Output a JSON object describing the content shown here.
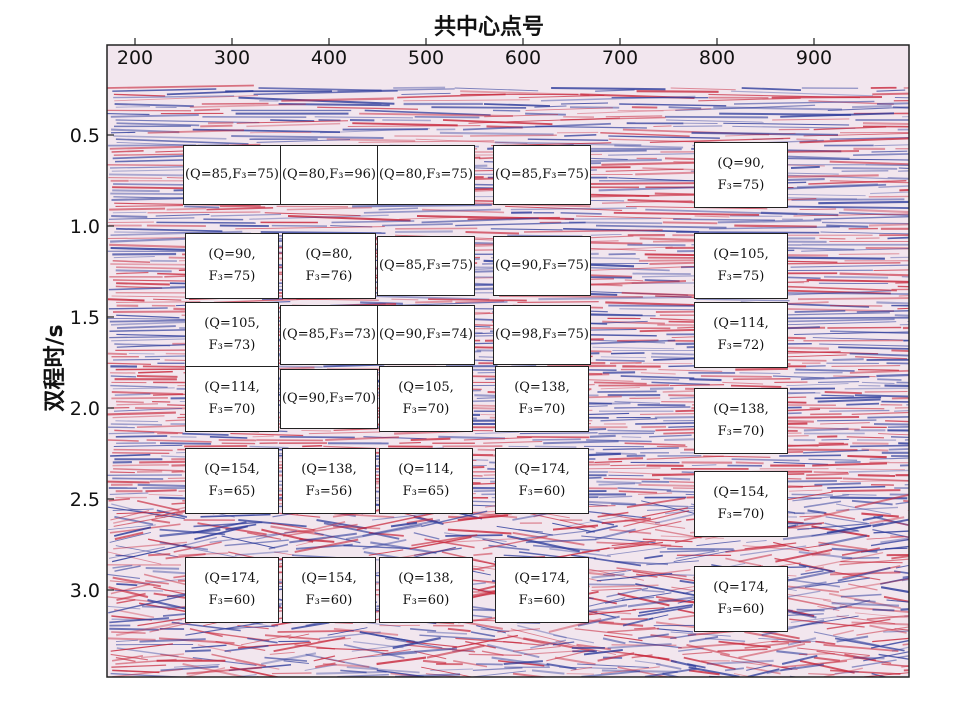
{
  "x_axis": {
    "title": "共中心点号",
    "ticks": [
      "200",
      "300",
      "400",
      "500",
      "600",
      "700",
      "800",
      "900"
    ]
  },
  "y_axis": {
    "title": "双程时/s",
    "ticks": [
      "0.5",
      "1.0",
      "1.5",
      "2.0",
      "2.5",
      "3.0"
    ]
  },
  "colors": {
    "positive": "#c8283c",
    "negative": "#2d3c9b",
    "background": "#f2e6ee"
  },
  "annotations": [
    {
      "lines": [
        "(Q=85,F₃=75)"
      ],
      "cmp": 300,
      "t": 0.72
    },
    {
      "lines": [
        "(Q=80,F₃=96)"
      ],
      "cmp": 400,
      "t": 0.72
    },
    {
      "lines": [
        "(Q=80,F₃=75)"
      ],
      "cmp": 500,
      "t": 0.72
    },
    {
      "lines": [
        "(Q=85,F₃=75)"
      ],
      "cmp": 620,
      "t": 0.72
    },
    {
      "lines": [
        "(Q=90,",
        "F₃=75)"
      ],
      "cmp": 825,
      "t": 0.72
    },
    {
      "lines": [
        "(Q=90,",
        "F₃=75)"
      ],
      "cmp": 300,
      "t": 1.22
    },
    {
      "lines": [
        "(Q=80,",
        "F₃=76)"
      ],
      "cmp": 400,
      "t": 1.22
    },
    {
      "lines": [
        "(Q=85,F₃=75)"
      ],
      "cmp": 500,
      "t": 1.22
    },
    {
      "lines": [
        "(Q=90,F₃=75)"
      ],
      "cmp": 620,
      "t": 1.22
    },
    {
      "lines": [
        "(Q=105,",
        "F₃=75)"
      ],
      "cmp": 825,
      "t": 1.22
    },
    {
      "lines": [
        "(Q=105,",
        "F₃=73)"
      ],
      "cmp": 300,
      "t": 1.6
    },
    {
      "lines": [
        "(Q=85,F₃=73)"
      ],
      "cmp": 400,
      "t": 1.6
    },
    {
      "lines": [
        "(Q=90,F₃=74)"
      ],
      "cmp": 500,
      "t": 1.6
    },
    {
      "lines": [
        "(Q=98,F₃=75)"
      ],
      "cmp": 620,
      "t": 1.6
    },
    {
      "lines": [
        "(Q=114,",
        "F₃=72)"
      ],
      "cmp": 825,
      "t": 1.6
    },
    {
      "lines": [
        "(Q=114,",
        "F₃=70)"
      ],
      "cmp": 300,
      "t": 1.95
    },
    {
      "lines": [
        "(Q=90,F₃=70)"
      ],
      "cmp": 400,
      "t": 1.95
    },
    {
      "lines": [
        "(Q=105,",
        "F₃=70)"
      ],
      "cmp": 500,
      "t": 1.95
    },
    {
      "lines": [
        "(Q=138,",
        "F₃=70)"
      ],
      "cmp": 620,
      "t": 1.95
    },
    {
      "lines": [
        "(Q=138,",
        "F₃=70)"
      ],
      "cmp": 825,
      "t": 2.07
    },
    {
      "lines": [
        "(Q=154,",
        "F₃=65)"
      ],
      "cmp": 300,
      "t": 2.4
    },
    {
      "lines": [
        "(Q=138,",
        "F₃=56)"
      ],
      "cmp": 400,
      "t": 2.4
    },
    {
      "lines": [
        "(Q=114,",
        "F₃=65)"
      ],
      "cmp": 500,
      "t": 2.4
    },
    {
      "lines": [
        "(Q=174,",
        "F₃=60)"
      ],
      "cmp": 620,
      "t": 2.4
    },
    {
      "lines": [
        "(Q=154,",
        "F₃=70)"
      ],
      "cmp": 825,
      "t": 2.53
    },
    {
      "lines": [
        "(Q=174,",
        "F₃=60)"
      ],
      "cmp": 300,
      "t": 3.0
    },
    {
      "lines": [
        "(Q=154,",
        "F₃=60)"
      ],
      "cmp": 400,
      "t": 3.0
    },
    {
      "lines": [
        "(Q=138,",
        "F₃=60)"
      ],
      "cmp": 500,
      "t": 3.0
    },
    {
      "lines": [
        "(Q=174,",
        "F₃=60)"
      ],
      "cmp": 620,
      "t": 3.0
    },
    {
      "lines": [
        "(Q=174,",
        "F₃=60)"
      ],
      "cmp": 825,
      "t": 3.05
    }
  ]
}
